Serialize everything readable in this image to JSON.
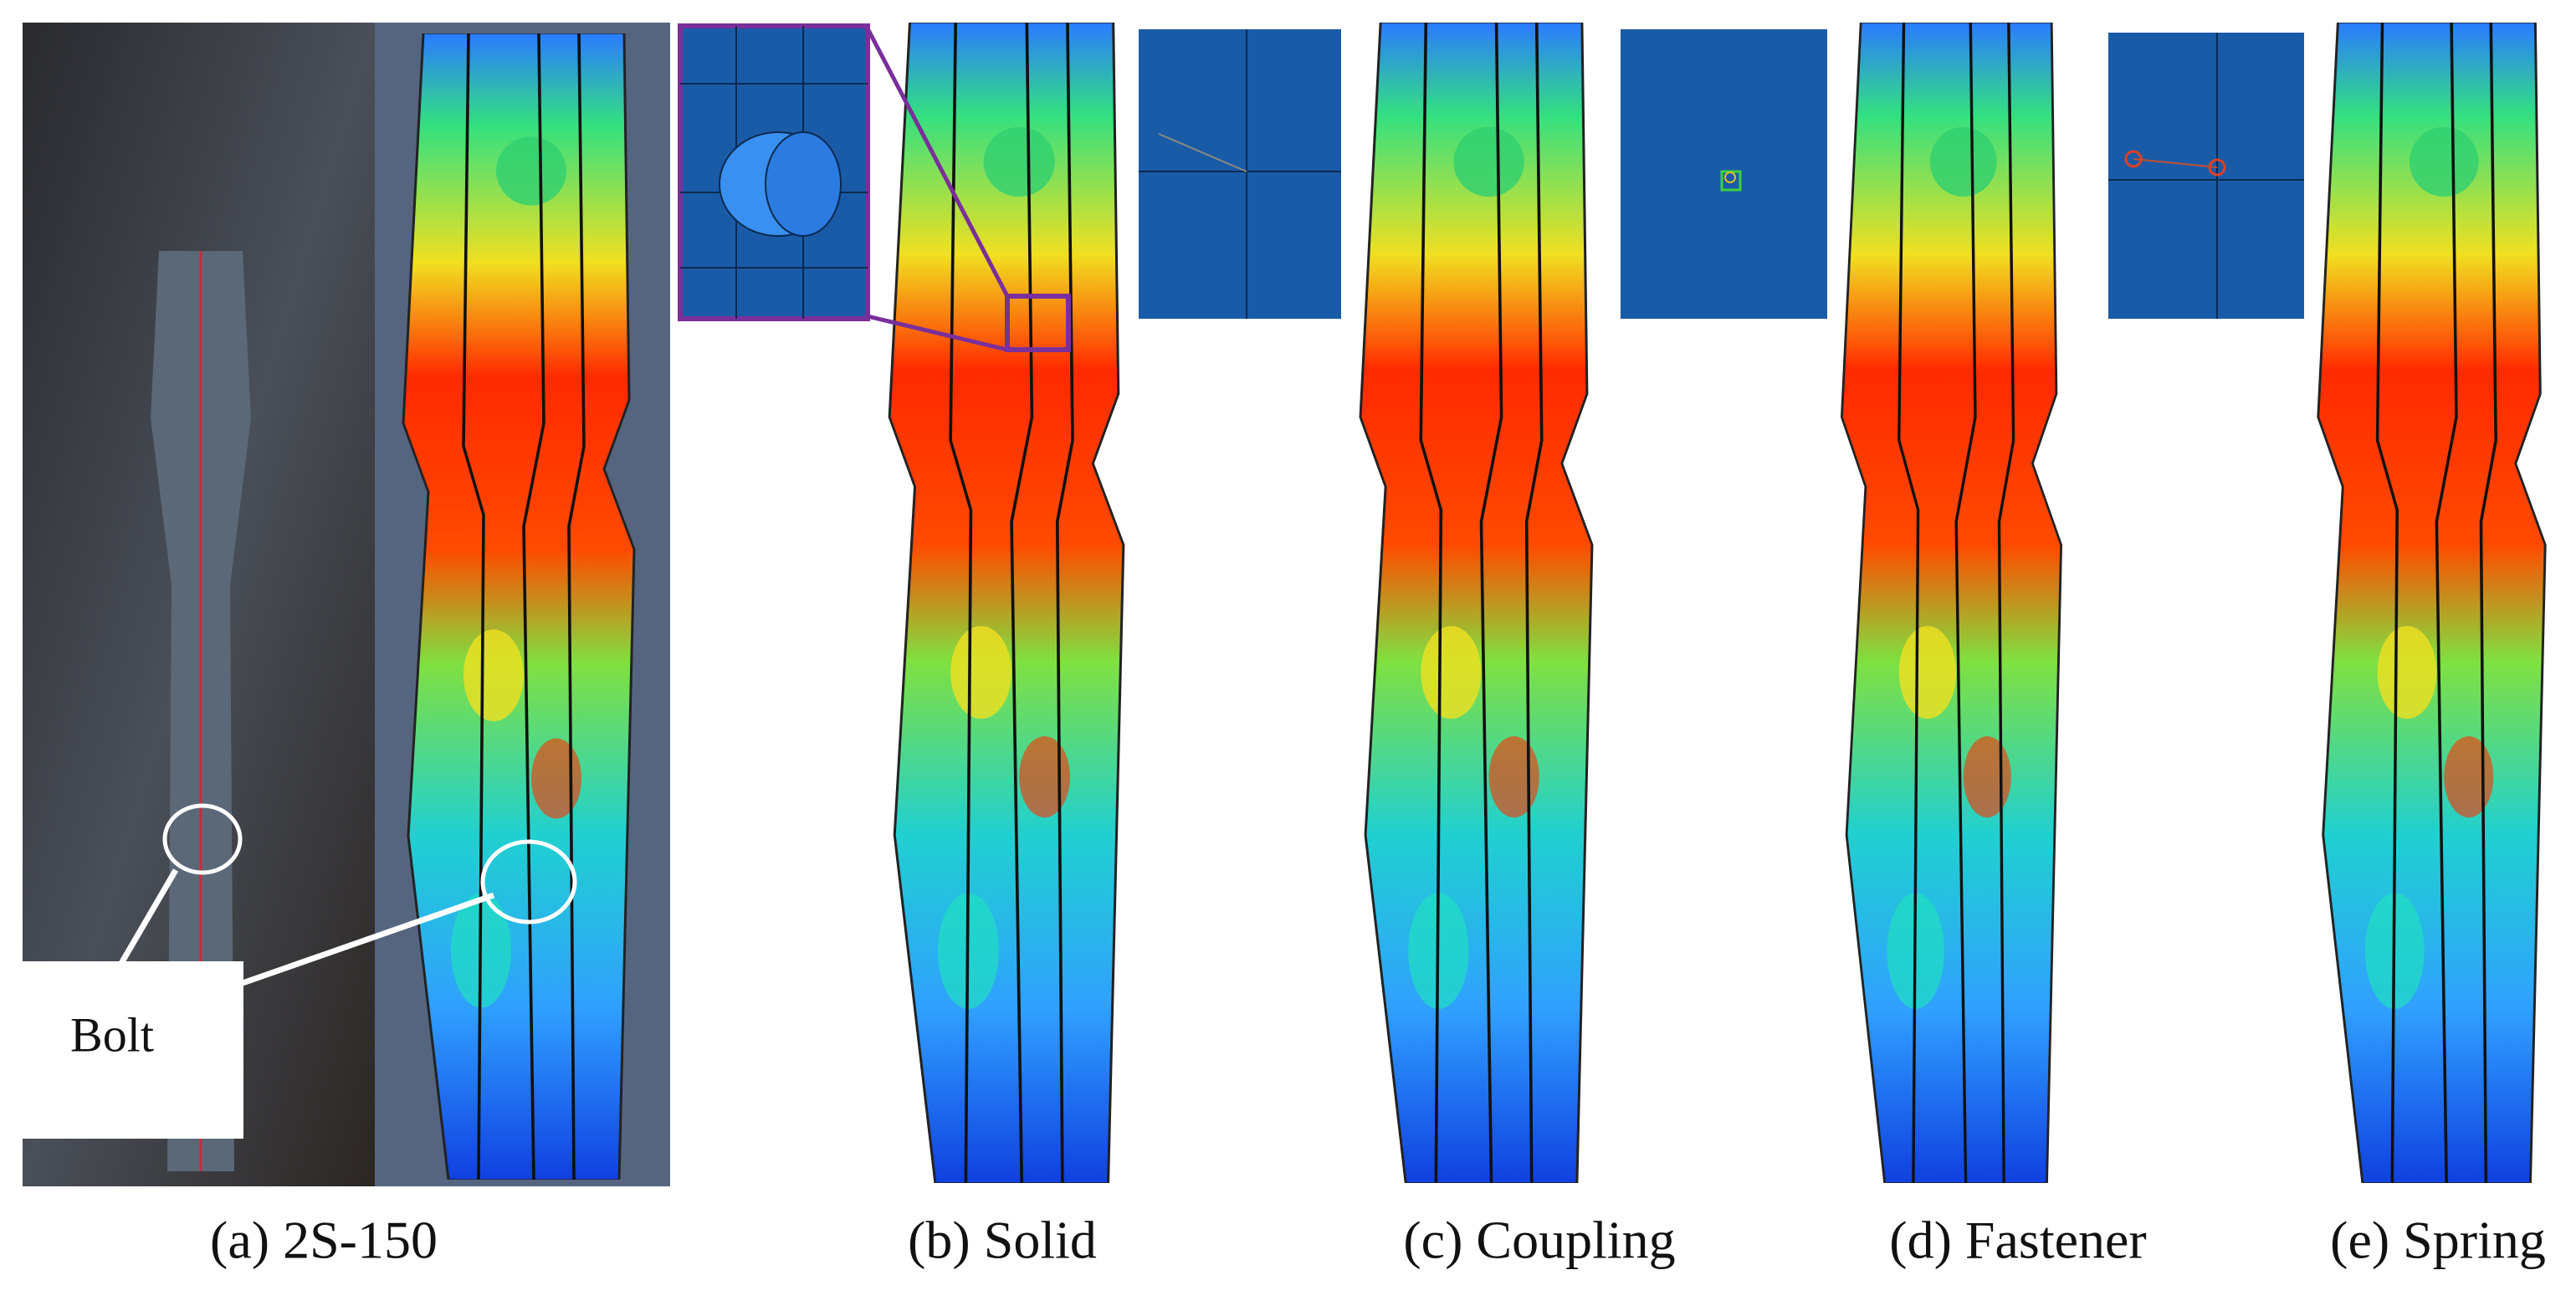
{
  "figure": {
    "annotation": "Bolt",
    "panels": [
      {
        "caption": "(a) 2S-150"
      },
      {
        "caption": "(b) Solid"
      },
      {
        "caption": "(c) Coupling"
      },
      {
        "caption": "(d) Fastener"
      },
      {
        "caption": "(e) Spring"
      }
    ]
  }
}
